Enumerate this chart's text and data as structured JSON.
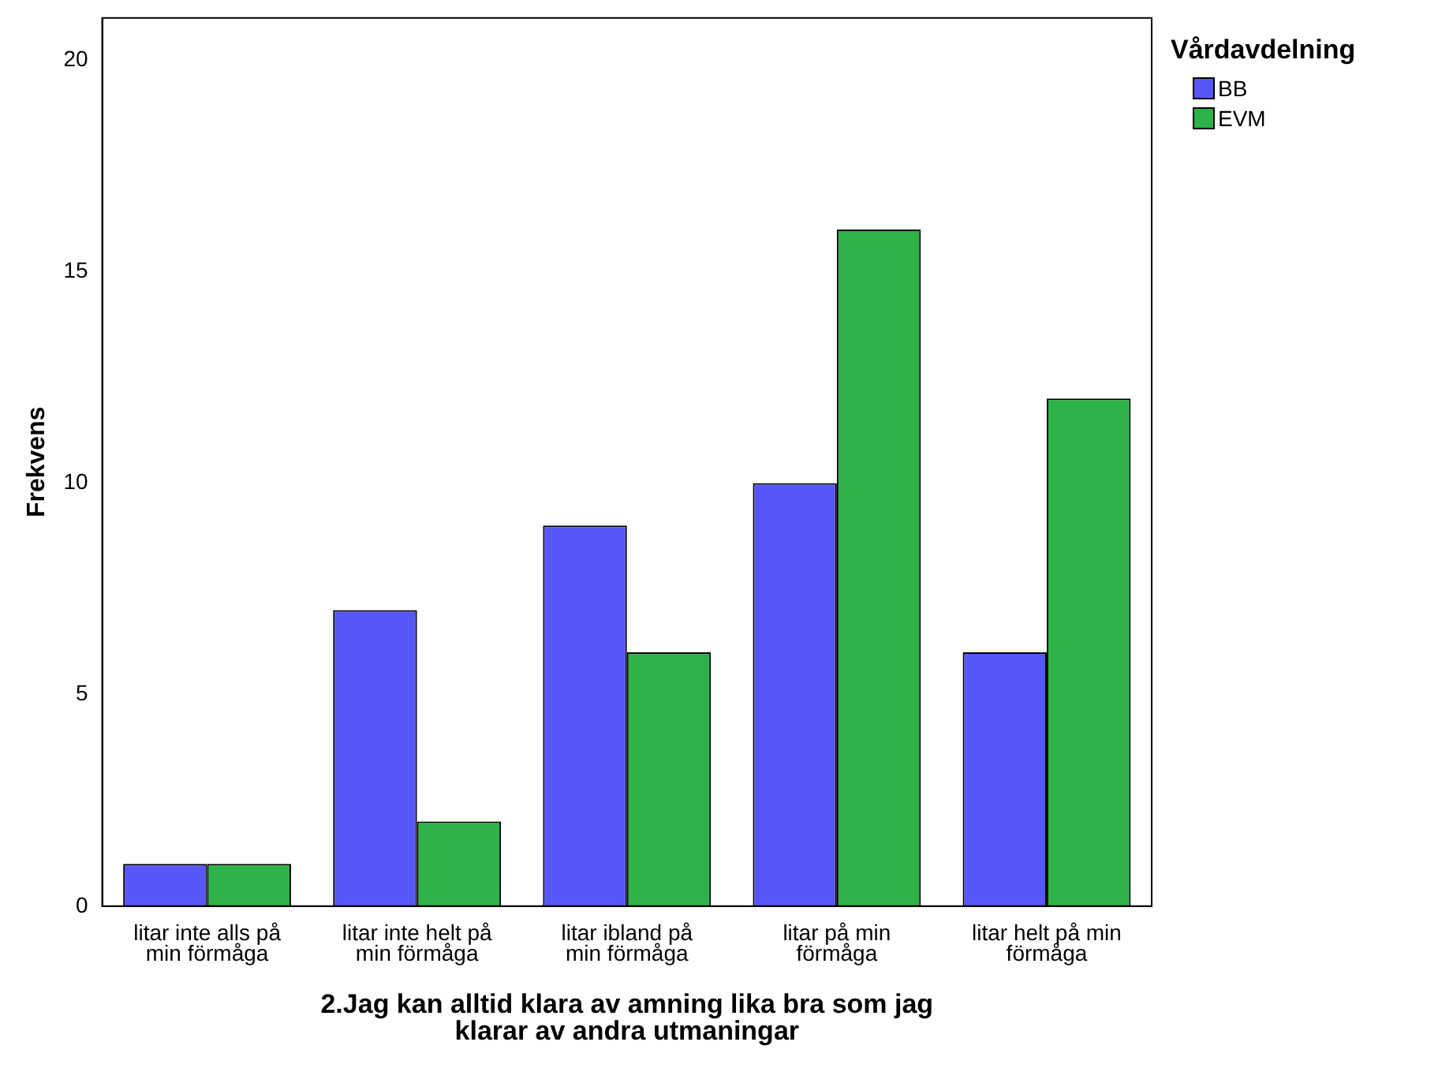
{
  "chart_data": {
    "type": "bar",
    "xlabel": "2.Jag kan alltid klara av amning lika bra som jag klarar av andra utmaningar",
    "ylabel": "Frekvens",
    "legend_title": "Vårdavdelning",
    "categories": [
      "litar inte alls på min förmåga",
      "litar inte helt på min förmåga",
      "litar ibland på min förmåga",
      "litar på min förmåga",
      "litar helt på min förmåga"
    ],
    "series": [
      {
        "name": "BB",
        "color": "#5757f7",
        "values": [
          1,
          7,
          9,
          10,
          6
        ]
      },
      {
        "name": "EVM",
        "color": "#2db34a",
        "values": [
          1,
          2,
          6,
          16,
          12
        ]
      }
    ],
    "ylim": [
      0,
      21
    ],
    "yticks": [
      0,
      5,
      10,
      15,
      20
    ],
    "grid": false,
    "legend": "top right"
  }
}
